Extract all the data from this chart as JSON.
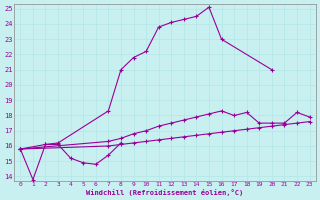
{
  "xlabel": "Windchill (Refroidissement éolien,°C)",
  "background_color": "#c8f0f0",
  "line_color": "#990099",
  "grid_color": "#b8e8e8",
  "xlim": [
    -0.5,
    23.5
  ],
  "ylim": [
    13.7,
    25.3
  ],
  "xticks": [
    0,
    1,
    2,
    3,
    4,
    5,
    6,
    7,
    8,
    9,
    10,
    11,
    12,
    13,
    14,
    15,
    16,
    17,
    18,
    19,
    20,
    21,
    22,
    23
  ],
  "yticks": [
    14,
    15,
    16,
    17,
    18,
    19,
    20,
    21,
    22,
    23,
    24,
    25
  ],
  "s1_x": [
    0,
    1,
    2,
    3,
    4,
    5,
    6,
    7,
    8
  ],
  "s1_y": [
    15.8,
    13.8,
    16.1,
    16.1,
    15.2,
    14.9,
    14.8,
    15.4,
    16.2
  ],
  "s2_x": [
    0,
    2,
    3,
    7,
    8,
    9,
    10,
    11,
    12,
    13,
    14,
    15,
    16,
    20
  ],
  "s2_y": [
    15.8,
    16.1,
    16.2,
    18.3,
    21.0,
    21.8,
    22.2,
    23.8,
    24.1,
    24.3,
    24.5,
    25.1,
    23.0,
    21.0
  ],
  "s3_x": [
    0,
    7,
    8,
    9,
    10,
    11,
    12,
    13,
    14,
    15,
    16,
    17,
    18,
    19,
    20,
    21,
    22,
    23
  ],
  "s3_y": [
    15.8,
    16.3,
    16.5,
    16.8,
    17.0,
    17.3,
    17.5,
    17.7,
    17.9,
    18.1,
    18.3,
    18.0,
    18.2,
    17.5,
    17.5,
    17.5,
    18.2,
    17.9
  ],
  "s4_x": [
    0,
    7,
    8,
    9,
    10,
    11,
    12,
    13,
    14,
    15,
    16,
    17,
    18,
    19,
    20,
    21,
    22,
    23
  ],
  "s4_y": [
    15.8,
    16.0,
    16.1,
    16.2,
    16.3,
    16.4,
    16.5,
    16.6,
    16.7,
    16.8,
    16.9,
    17.0,
    17.1,
    17.2,
    17.3,
    17.4,
    17.5,
    17.6
  ]
}
